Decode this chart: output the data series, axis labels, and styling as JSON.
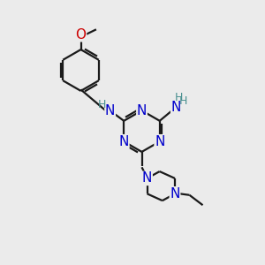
{
  "background_color": "#ebebeb",
  "bond_color": "#1a1a1a",
  "N_color": "#0000cc",
  "O_color": "#cc0000",
  "H_color": "#4a9090",
  "figsize": [
    3.0,
    3.0
  ],
  "dpi": 100,
  "xlim": [
    0,
    10
  ],
  "ylim": [
    0,
    10
  ]
}
